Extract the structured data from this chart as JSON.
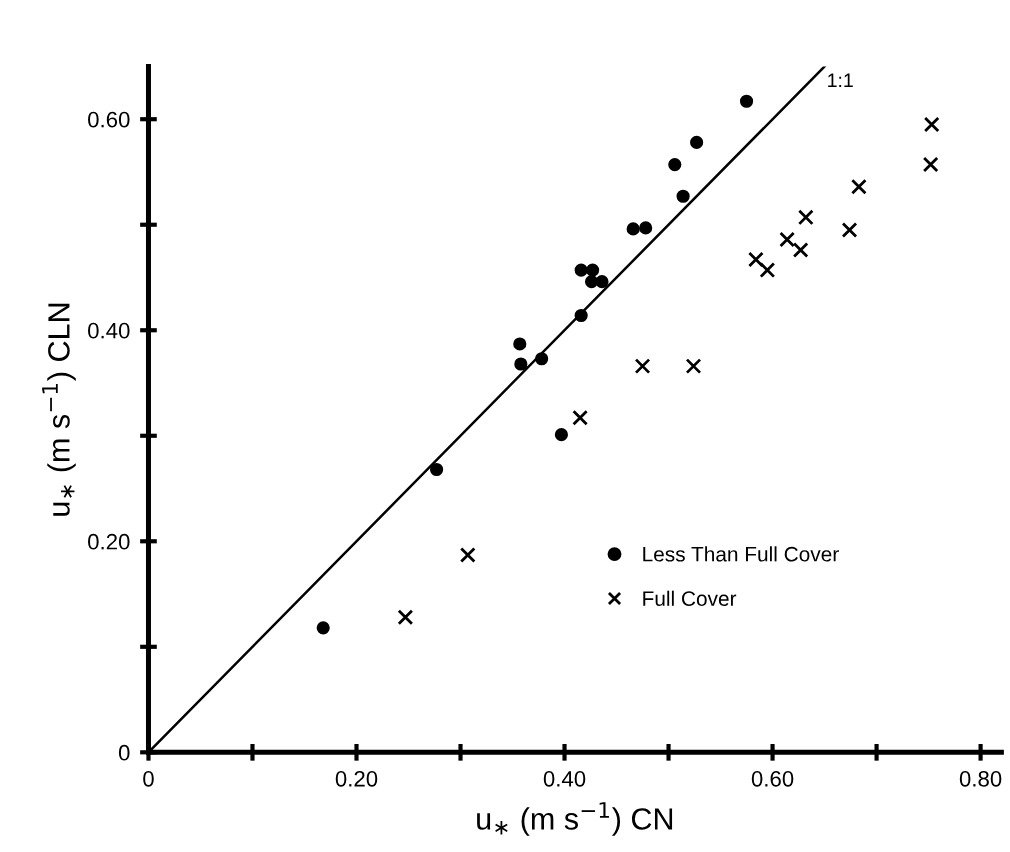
{
  "chart_data": {
    "type": "scatter",
    "xlabel": "u$_{∗}$ (m s$^{−1}$) CN",
    "ylabel": "u$_{∗}$ (m s$^{−1}$) CLN",
    "series": [
      {
        "name": "Less Than Full Cover",
        "marker": "circle",
        "color": "#000000",
        "x": [
          0.575,
          0.527,
          0.506,
          0.514,
          0.466,
          0.478,
          0.416,
          0.427,
          0.426,
          0.436,
          0.416,
          0.357,
          0.358,
          0.378,
          0.397,
          0.277,
          0.168
        ],
        "values": [
          0.617,
          0.578,
          0.557,
          0.527,
          0.496,
          0.497,
          0.457,
          0.457,
          0.446,
          0.446,
          0.414,
          0.387,
          0.368,
          0.373,
          0.301,
          0.268,
          0.118
        ]
      },
      {
        "name": "Full Cover",
        "marker": "cross",
        "color": "#000000",
        "x": [
          0.753,
          0.752,
          0.683,
          0.632,
          0.674,
          0.614,
          0.627,
          0.584,
          0.595,
          0.475,
          0.524,
          0.415,
          0.307,
          0.247
        ],
        "values": [
          0.595,
          0.557,
          0.536,
          0.507,
          0.495,
          0.486,
          0.476,
          0.467,
          0.457,
          0.366,
          0.366,
          0.317,
          0.187,
          0.128
        ]
      },
      {
        "type": "line",
        "line_style": "solid",
        "color": "#000000",
        "x": [
          0,
          0.65
        ],
        "values": [
          0,
          0.65
        ]
      }
    ],
    "annotations": [
      {
        "text": "1:1",
        "x": 0.62,
        "y": 0.62
      }
    ],
    "xlim": [
      0,
      0.82
    ],
    "ylim": [
      0,
      0.65
    ],
    "xticks": [
      0,
      {
        "value": 0.1,
        "label": null
      },
      {
        "value": 0.2,
        "label": "0.20"
      },
      {
        "value": 0.3,
        "label": null
      },
      {
        "value": 0.4,
        "label": "0.40"
      },
      {
        "value": 0.5,
        "label": null
      },
      {
        "value": 0.6,
        "label": "0.60"
      },
      {
        "value": 0.7,
        "label": null
      },
      {
        "value": 0.8,
        "label": "0.80"
      }
    ],
    "yticks": [
      0,
      {
        "value": 0.1,
        "label": null
      },
      {
        "value": 0.2,
        "label": "0.20"
      },
      {
        "value": 0.3,
        "label": null
      },
      {
        "value": 0.4,
        "label": "0.40"
      },
      {
        "value": 0.5,
        "label": null
      },
      {
        "value": 0.6,
        "label": "0.60"
      }
    ],
    "grid": false,
    "legend": "bottom right"
  }
}
